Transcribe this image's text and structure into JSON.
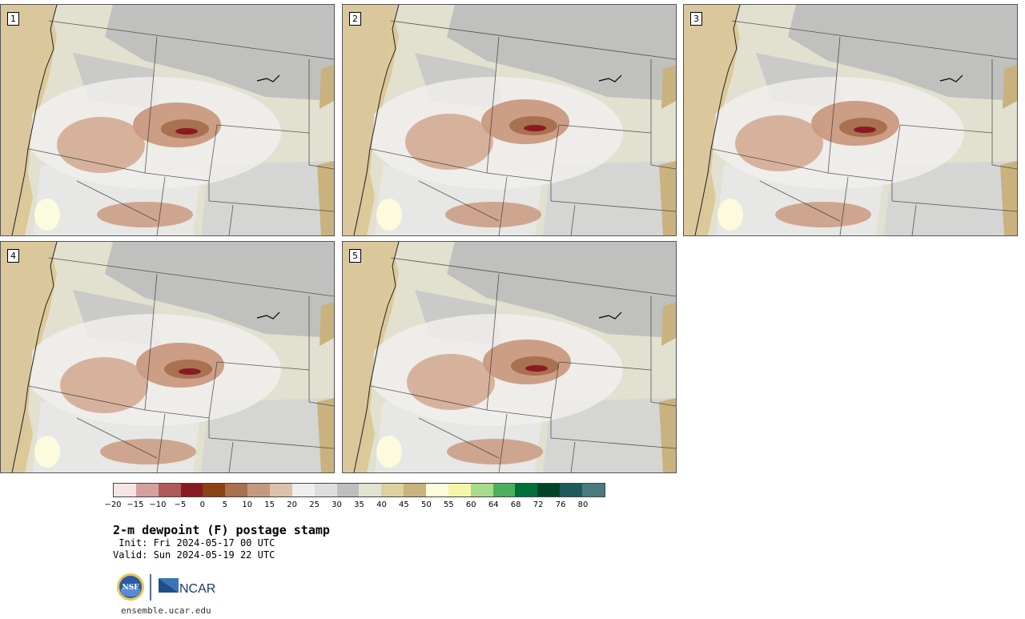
{
  "panels": [
    {
      "id": "1"
    },
    {
      "id": "2"
    },
    {
      "id": "3"
    },
    {
      "id": "4"
    },
    {
      "id": "5"
    }
  ],
  "colorbar": {
    "colors": [
      "#f4e6e4",
      "#d4a0a0",
      "#b05a5a",
      "#8a1a22",
      "#8a4212",
      "#a8714f",
      "#c39a80",
      "#dcc1ad",
      "#eeeeee",
      "#dedede",
      "#bebebe",
      "#e4e2d0",
      "#dfd0a0",
      "#c9b27d",
      "#fdfbdd",
      "#f6f6a8",
      "#a8dc8c",
      "#4ab060",
      "#00703a",
      "#004428",
      "#1c5a5c",
      "#4a7a7e"
    ],
    "ticks": [
      "−20",
      "−15",
      "−10",
      "−5",
      "0",
      "5",
      "10",
      "15",
      "20",
      "25",
      "30",
      "35",
      "40",
      "45",
      "50",
      "55",
      "60",
      "64",
      "68",
      "72",
      "76",
      "80"
    ]
  },
  "title": "2-m dewpoint (F) postage stamp",
  "init": " Init: Fri 2024-05-17 00 UTC",
  "valid": "Valid: Sun 2024-05-19 22 UTC",
  "logos": {
    "nsf": "NSF",
    "ncar": "NCAR"
  },
  "site": "ensemble.ucar.edu"
}
